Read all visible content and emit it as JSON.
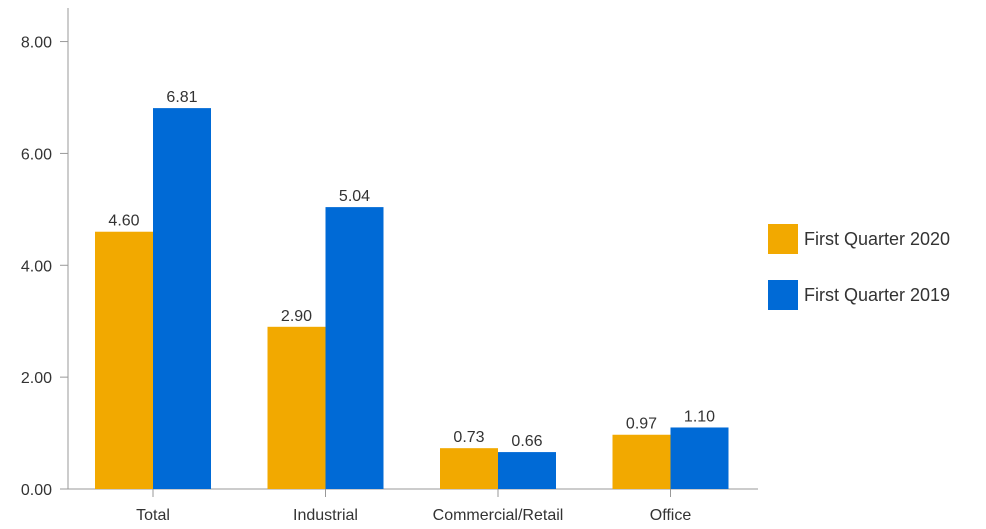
{
  "chart_data": {
    "type": "bar",
    "categories": [
      "Total",
      "Industrial",
      "Commercial/Retail",
      "Office"
    ],
    "series": [
      {
        "name": "First Quarter 2020",
        "values": [
          4.6,
          2.9,
          0.73,
          0.97
        ],
        "labels": [
          "4.60",
          "2.90",
          "0.73",
          "0.97"
        ],
        "color": "#F2A900"
      },
      {
        "name": "First Quarter 2019",
        "values": [
          6.81,
          5.04,
          0.66,
          1.1
        ],
        "labels": [
          "6.81",
          "5.04",
          "0.66",
          "1.10"
        ],
        "color": "#006AD6"
      }
    ],
    "yticks": [
      0,
      2,
      4,
      6,
      8
    ],
    "ytick_labels": [
      "0.00",
      "2.00",
      "4.00",
      "6.00",
      "8.00"
    ],
    "ylim": [
      0,
      8.6
    ],
    "grid": false,
    "legend_position": "right"
  }
}
